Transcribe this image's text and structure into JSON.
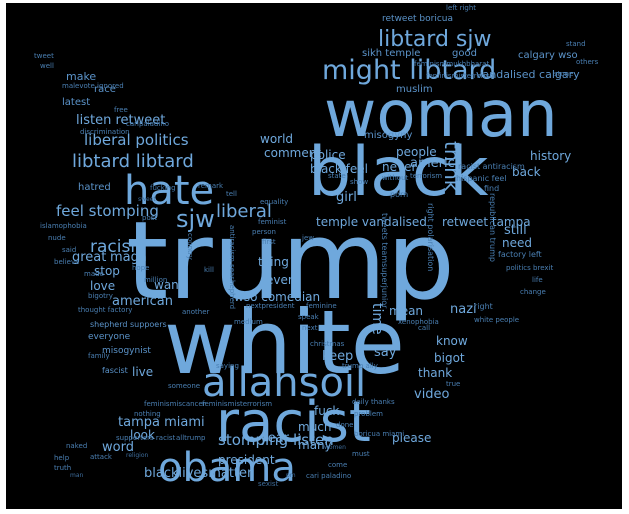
{
  "wordcloud": {
    "colors": {
      "background": "#000000",
      "word": "#6fa8dc"
    },
    "words": {
      "trump": "trump",
      "white": "white",
      "woman": "woman",
      "black": "black",
      "racist": "racist",
      "allahsoil": "allahsoil",
      "obama": "obama",
      "hate": "hate",
      "might_libtard": "might libtard",
      "libtard_sjw": "libtard sjw",
      "sjw": "sjw",
      "liberal": "liberal",
      "libtard_libtard": "libtard libtard",
      "liberal_politics": "liberal politics",
      "listen_retweet": "listen retweet",
      "feel_stomping": "feel stomping",
      "racism": "racism",
      "great": "great",
      "maga": "maga",
      "stop": "stop",
      "love": "love",
      "american": "american",
      "stomping_listen": "stomping listen",
      "tampa_miami": "tampa miami",
      "look": "look",
      "word": "word",
      "blacklivesmatter": "blacklivesmatter",
      "president": "president",
      "year": "year",
      "much": "much",
      "many": "many",
      "video": "video",
      "please": "please",
      "fuck": "fuck",
      "keep": "keep",
      "say": "say",
      "thank": "thank",
      "bigot": "bigot",
      "know": "know",
      "nazi": "nazi",
      "need": "need",
      "still": "still",
      "back": "back",
      "history": "history",
      "america": "america",
      "never": "never",
      "people": "people",
      "temple_vandalised": "temple vandalised",
      "retweet_tampa": "retweet tampa",
      "girl": "girl",
      "black_feel": "black feel",
      "police": "police",
      "comment": "comment",
      "world": "world",
      "thing": "thing",
      "even": "even",
      "want": "want",
      "wso_comedian": "wso comedian",
      "live": "live",
      "mean": "mean",
      "think": "think",
      "time": "time",
      "retweet_boricua": "retweet boricua",
      "sikh_temple": "sikh temple",
      "good": "good",
      "calgary_wso": "calgary wso",
      "muslim": "muslim",
      "vandalised_calgary": "vandalised calgary",
      "make": "make",
      "race": "race",
      "latest": "latest",
      "misogyny": "misogyny",
      "hatred": "hatred",
      "left_right": "left right",
      "tweet": "tweet",
      "well": "well",
      "malevote_ignored": "malevote ignored",
      "free": "free",
      "discrimination": "discrimination",
      "islamophobia": "islamophobia",
      "feminismisterrorism": "feminismisterrorism",
      "feminismmukhbharat": "feminismmukhbharat",
      "feminismiscancer": "feminismiscancer",
      "supporters_racist": "supporters racist",
      "shepherd_suppoers": "shepherd suppoers",
      "misogynist": "misogynist",
      "everyone": "everyone",
      "family": "family",
      "fascist": "fascist",
      "help": "help",
      "truth": "truth",
      "attack": "attack",
      "naked": "naked",
      "nothing": "nothing",
      "someone": "someone",
      "hope": "hope",
      "million": "million",
      "made": "made",
      "thought_factory": "thought factory",
      "another": "another",
      "equality": "equality",
      "remark": "remark",
      "feminine": "feminine",
      "nextpresident": "nextpresident",
      "speak": "speak",
      "next": "next",
      "christmas": "christmas",
      "trump_ally": "trump ally",
      "problem": "problem",
      "daily_thanks": "daily thanks",
      "done": "done",
      "boricua_miami": "boricua miami",
      "cari_paladino": "cari paladino",
      "must": "must",
      "come": "come",
      "factory_left": "factory left",
      "right": "right",
      "white_people": "white people",
      "politics_brexit": "politics brexit",
      "racist_antiracism": "racist antiracism",
      "hispanic_feel": "hispanic feel",
      "stand": "stand",
      "others": "others",
      "stone": "stone",
      "tweets_teamsuperjunior": "tweets teamsuperjunior",
      "right_polarisation": "right polarisation",
      "republican_trump": "republican trump",
      "feminist": "feminist",
      "person": "person",
      "first": "first",
      "true": "true",
      "call": "call",
      "life": "life",
      "change": "change",
      "xenophobia": "xenophobia",
      "saying": "saying",
      "kill": "kill",
      "country": "country",
      "antiracism_seashepherd": "antiracism seashepherd",
      "medium": "medium",
      "word_bigotry": "bigotry",
      "nude": "nude",
      "said": "said",
      "believe": "believe",
      "alltrump": "alltrump",
      "carlpaladino": "carlpaladino",
      "fucking": "fucking",
      "sexist": "sexist",
      "state": "state",
      "show": "show",
      "porn": "porn",
      "find": "find",
      "without": "without",
      "terrorism": "terrorism",
      "jew": "jew",
      "religion": "religion",
      "pm": "pm",
      "tell": "tell",
      "post": "post",
      "sweet": "sweet",
      "man": "man",
      "women": "women"
    }
  }
}
